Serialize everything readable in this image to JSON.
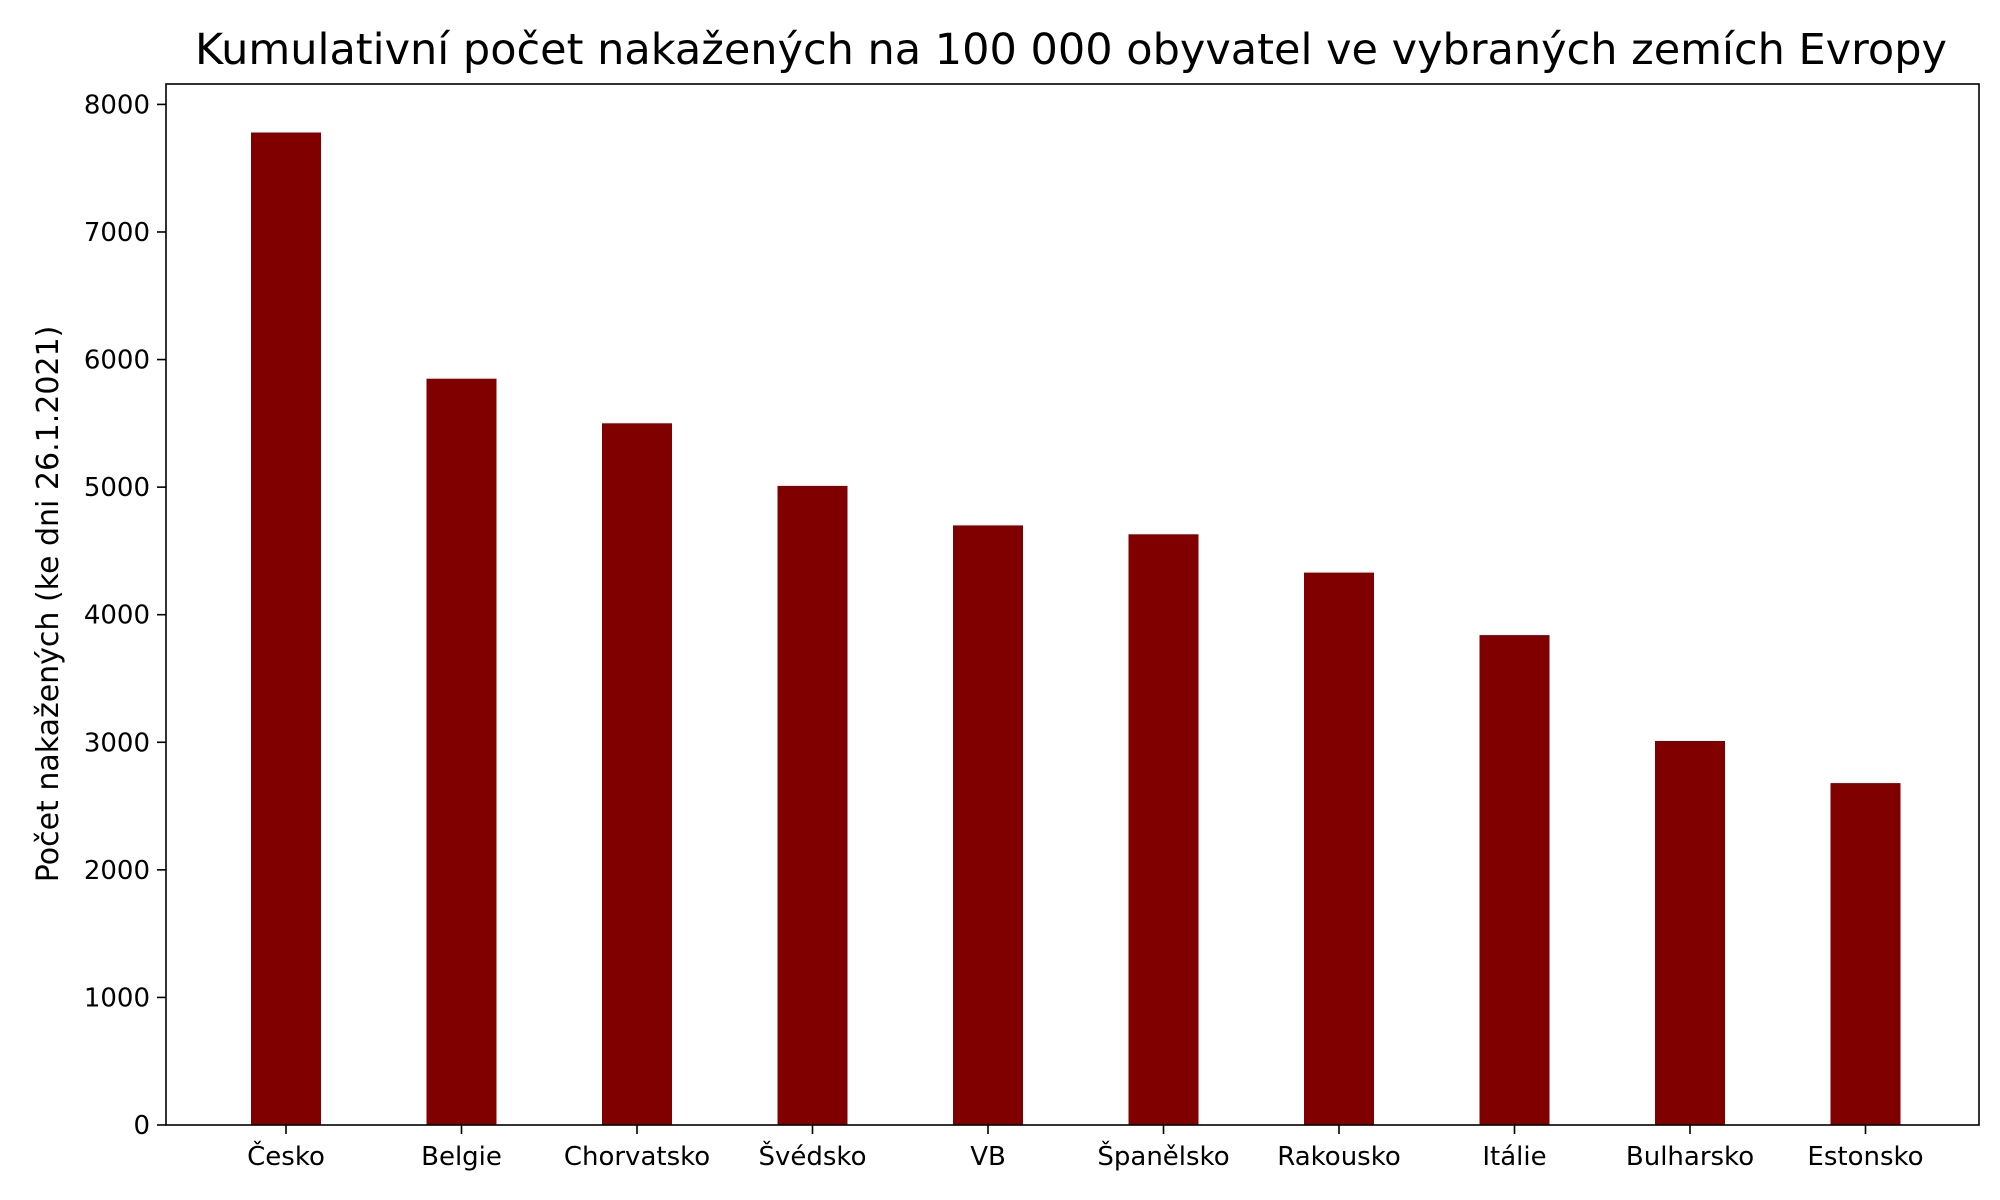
{
  "chart_data": {
    "type": "bar",
    "title": "Kumulativní počet nakažených na 100 000 obyvatel ve vybraných zemích Evropy",
    "xlabel": "",
    "ylabel": "Počet nakažených (ke dni 26.1.2021)",
    "categories": [
      "Česko",
      "Belgie",
      "Chorvatsko",
      "Švédsko",
      "VB",
      "Španělsko",
      "Rakousko",
      "Itálie",
      "Bulharsko",
      "Estonsko"
    ],
    "values": [
      7780,
      5850,
      5500,
      5010,
      4700,
      4630,
      4330,
      3840,
      3010,
      2680
    ],
    "ylim": [
      0,
      8160
    ],
    "yticks": [
      0,
      1000,
      2000,
      3000,
      4000,
      5000,
      6000,
      7000,
      8000
    ],
    "bar_color": "#800000",
    "grid": false,
    "legend": "none"
  }
}
